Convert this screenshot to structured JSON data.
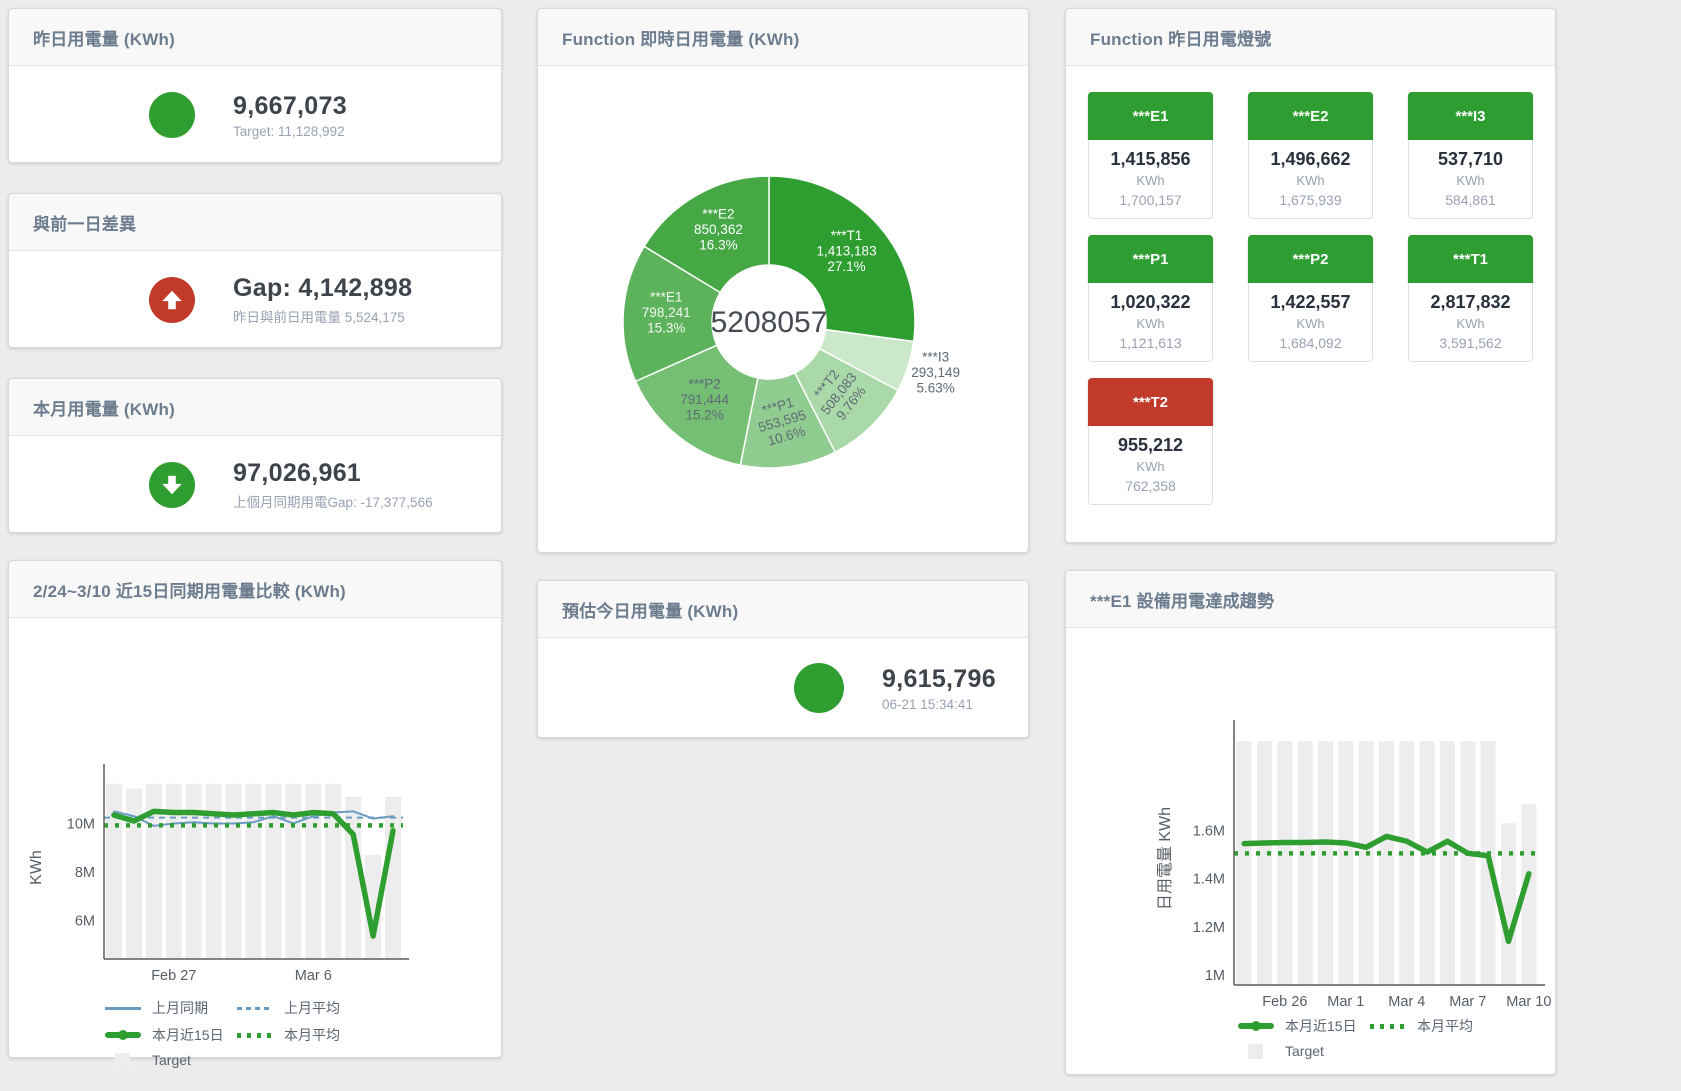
{
  "colors": {
    "green": "#2f9e31",
    "red": "#c23b2a",
    "blue": "#6a9bc3",
    "target_gray": "#ededed",
    "axis": "#5c5c5c"
  },
  "cards": {
    "yesterday": {
      "title": "昨日用電量 (KWh)",
      "value": "9,667,073",
      "subtitle": "Target: 11,128,992"
    },
    "prev_day_gap": {
      "title": "與前一日差異",
      "value": "Gap: 4,142,898",
      "subtitle": "昨日與前日用電量 5,524,175"
    },
    "month": {
      "title": "本月用電量 (KWh)",
      "value": "97,026,961",
      "subtitle": "上個月同期用電Gap: -17,377,566"
    },
    "compare": {
      "title": "2/24~3/10 近15日同期用電量比較 (KWh)"
    },
    "donut": {
      "title": "Function 即時日用電量 (KWh)"
    },
    "estimate": {
      "title": "預估今日用電量 (KWh)",
      "value": "9,615,796",
      "subtitle": "06-21 15:34:41"
    },
    "lights": {
      "title": "Function 昨日用電燈號"
    },
    "trend": {
      "title": "***E1 設備用電達成趨勢"
    }
  },
  "lights_tiles": [
    {
      "name": "***E1",
      "value": "1,415,856",
      "unit": "KWh",
      "target": "1,700,157",
      "status": "green"
    },
    {
      "name": "***E2",
      "value": "1,496,662",
      "unit": "KWh",
      "target": "1,675,939",
      "status": "green"
    },
    {
      "name": "***I3",
      "value": "537,710",
      "unit": "KWh",
      "target": "584,861",
      "status": "green"
    },
    {
      "name": "***P1",
      "value": "1,020,322",
      "unit": "KWh",
      "target": "1,121,613",
      "status": "green"
    },
    {
      "name": "***P2",
      "value": "1,422,557",
      "unit": "KWh",
      "target": "1,684,092",
      "status": "green"
    },
    {
      "name": "***T1",
      "value": "2,817,832",
      "unit": "KWh",
      "target": "3,591,562",
      "status": "green"
    },
    {
      "name": "***T2",
      "value": "955,212",
      "unit": "KWh",
      "target": "762,358",
      "status": "red"
    }
  ],
  "chart_data": [
    {
      "type": "pie",
      "title": "Function 即時日用電量 (KWh)",
      "center_total": "5208057",
      "legend_position": "none",
      "series": [
        {
          "name": "***T1",
          "value": 1413183,
          "display": "1,413,183",
          "pct": "27.1%",
          "color": "#2f9e31",
          "label_color": "#ffffff"
        },
        {
          "name": "***I3",
          "value": 293149,
          "display": "293,149",
          "pct": "5.63%",
          "color": "#cbe8cb",
          "label_color": "#5f6a75",
          "label_outside": true
        },
        {
          "name": "***T2",
          "value": 508083,
          "display": "508,083",
          "pct": "9.76%",
          "color": "#a9d8a9",
          "label_color": "#5f6a75",
          "label_rotate": -52
        },
        {
          "name": "***P1",
          "value": 553595,
          "display": "553,595",
          "pct": "10.6%",
          "color": "#90cc90",
          "label_color": "#5f6a75",
          "label_rotate": -16
        },
        {
          "name": "***P2",
          "value": 791444,
          "display": "791,444",
          "pct": "15.2%",
          "color": "#74bf74",
          "label_color": "#5f6a75"
        },
        {
          "name": "***E1",
          "value": 798241,
          "display": "798,241",
          "pct": "15.3%",
          "color": "#5cb35c",
          "label_color": "#f2f7f2"
        },
        {
          "name": "***E2",
          "value": 850362,
          "display": "850,362",
          "pct": "16.3%",
          "color": "#45a845",
          "label_color": "#ffffff"
        }
      ]
    },
    {
      "type": "line",
      "title": "2/24~3/10 近15日同期用電量比較 (KWh)",
      "ylabel": "KWh",
      "grid": false,
      "x": [
        "2/24",
        "2/25",
        "2/26",
        "2/27",
        "2/28",
        "3/1",
        "3/2",
        "3/3",
        "3/4",
        "3/5",
        "3/6",
        "3/7",
        "3/8",
        "3/9",
        "3/10"
      ],
      "xticks": [
        {
          "index": 3,
          "label": "Feb 27"
        },
        {
          "index": 10,
          "label": "Mar 6"
        }
      ],
      "yticks": [
        {
          "value": 6000000,
          "label": "6M"
        },
        {
          "value": 8000000,
          "label": "8M"
        },
        {
          "value": 10000000,
          "label": "10M"
        }
      ],
      "ylim": [
        4400000,
        11960000
      ],
      "target_bars": {
        "name": "Target",
        "values": [
          11640000,
          11440000,
          11640000,
          11640000,
          11640000,
          11640000,
          11640000,
          11640000,
          11640000,
          11640000,
          11640000,
          11640000,
          11100000,
          8700000,
          11100000
        ]
      },
      "series": [
        {
          "name": "上月同期",
          "style": "solid",
          "color": "blue",
          "width": 2,
          "values": [
            10500000,
            10300000,
            9900000,
            10000000,
            10050000,
            10000000,
            10000000,
            10050000,
            10300000,
            10000000,
            10300000,
            10450000,
            10500000,
            10200000,
            10300000
          ]
        },
        {
          "name": "上月平均",
          "style": "dashed",
          "color": "blue",
          "width": 2,
          "constant": 10240000
        },
        {
          "name": "本月近15日",
          "style": "solid",
          "color": "green",
          "width": 5.5,
          "values": [
            10350000,
            10100000,
            10500000,
            10450000,
            10450000,
            10400000,
            10350000,
            10400000,
            10450000,
            10350000,
            10450000,
            10400000,
            9550000,
            5350000,
            9700000
          ]
        },
        {
          "name": "本月平均",
          "style": "dotted",
          "color": "green",
          "width": 4.5,
          "constant": 9920000
        }
      ]
    },
    {
      "type": "line",
      "title": "***E1 設備用電達成趨勢",
      "ylabel": "日用電量 KWh",
      "grid": false,
      "x": [
        "2/24",
        "2/25",
        "2/26",
        "2/27",
        "2/28",
        "3/1",
        "3/2",
        "3/3",
        "3/4",
        "3/5",
        "3/6",
        "3/7",
        "3/8",
        "3/9",
        "3/10"
      ],
      "xticks": [
        {
          "index": 2,
          "label": "Feb 26"
        },
        {
          "index": 5,
          "label": "Mar 1"
        },
        {
          "index": 8,
          "label": "Mar 4"
        },
        {
          "index": 11,
          "label": "Mar 7"
        },
        {
          "index": 14,
          "label": "Mar 10"
        }
      ],
      "yticks": [
        {
          "value": 1000000,
          "label": "1M"
        },
        {
          "value": 1200000,
          "label": "1.2M"
        },
        {
          "value": 1400000,
          "label": "1.4M"
        },
        {
          "value": 1600000,
          "label": "1.6M"
        }
      ],
      "ylim": [
        959000,
        2008000
      ],
      "target_bars": {
        "name": "Target",
        "values": [
          1970000,
          1970000,
          1970000,
          1970000,
          1970000,
          1970000,
          1970000,
          1970000,
          1970000,
          1970000,
          1970000,
          1970000,
          1970000,
          1630000,
          1710000
        ]
      },
      "series": [
        {
          "name": "本月近15日",
          "style": "solid",
          "color": "green",
          "width": 5.5,
          "values": [
            1545000,
            1548000,
            1550000,
            1550000,
            1552000,
            1548000,
            1530000,
            1575000,
            1555000,
            1510000,
            1555000,
            1505000,
            1495000,
            1140000,
            1420000
          ]
        },
        {
          "name": "本月平均",
          "style": "dotted",
          "color": "green",
          "width": 4.5,
          "constant": 1505000
        }
      ]
    }
  ]
}
